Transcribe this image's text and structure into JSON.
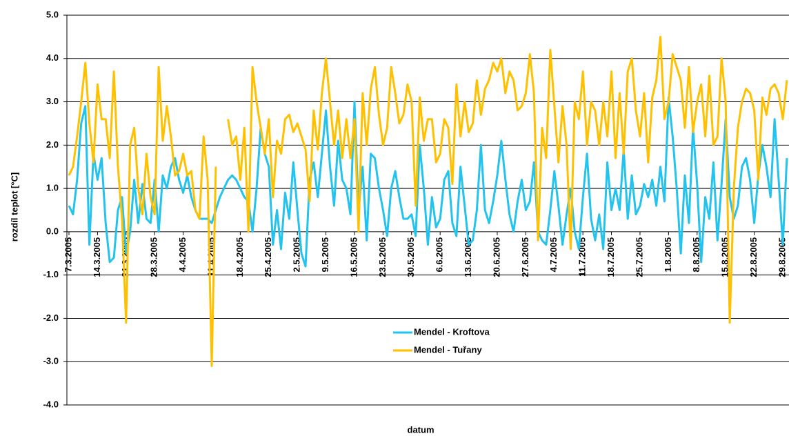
{
  "chart_data": {
    "type": "line",
    "y_label": "rozdíl teplot [°C]",
    "x_label": "datum",
    "categories": [
      "7.3.2005",
      null,
      null,
      null,
      null,
      null,
      null,
      "14.3.2005",
      null,
      null,
      null,
      null,
      null,
      null,
      "21.3.2005",
      null,
      null,
      null,
      null,
      null,
      null,
      "28.3.2005",
      null,
      null,
      null,
      null,
      null,
      null,
      "4.4.2005",
      null,
      null,
      null,
      null,
      null,
      null,
      "11.4.2005",
      null,
      null,
      null,
      null,
      null,
      null,
      "18.4.2005",
      null,
      null,
      null,
      null,
      null,
      null,
      "25.4.2005",
      null,
      null,
      null,
      null,
      null,
      null,
      "2.5.2005",
      null,
      null,
      null,
      null,
      null,
      null,
      "9.5.2005",
      null,
      null,
      null,
      null,
      null,
      null,
      "16.5.2005",
      null,
      null,
      null,
      null,
      null,
      null,
      "23.5.2005",
      null,
      null,
      null,
      null,
      null,
      null,
      "30.5.2005",
      null,
      null,
      null,
      null,
      null,
      null,
      "6.6.2005",
      null,
      null,
      null,
      null,
      null,
      null,
      "13.6.2005",
      null,
      null,
      null,
      null,
      null,
      null,
      "20.6.2005",
      null,
      null,
      null,
      null,
      null,
      null,
      "27.6.2005",
      null,
      null,
      null,
      null,
      null,
      null,
      "4.7.2005",
      null,
      null,
      null,
      null,
      null,
      null,
      "11.7.2005",
      null,
      null,
      null,
      null,
      null,
      null,
      "18.7.2005",
      null,
      null,
      null,
      null,
      null,
      null,
      "25.7.2005",
      null,
      null,
      null,
      null,
      null,
      null,
      "1.8.2005",
      null,
      null,
      null,
      null,
      null,
      null,
      "8.8.2005",
      null,
      null,
      null,
      null,
      null,
      null,
      "15.8.2005",
      null,
      null,
      null,
      null,
      null,
      null,
      "22.8.2005",
      null,
      null,
      null,
      null,
      null,
      null,
      "29.8.2005",
      null
    ],
    "series": [
      {
        "name": "Mendel - Kroftova",
        "color": "#22c3ee",
        "values": [
          0.6,
          0.4,
          1.2,
          2.5,
          2.9,
          -0.3,
          1.8,
          1.2,
          1.7,
          0.2,
          -0.7,
          -0.6,
          0.5,
          0.8,
          -0.5,
          0.0,
          1.2,
          0.2,
          1.1,
          0.3,
          0.2,
          1.2,
          0.0,
          1.3,
          1.0,
          1.5,
          1.7,
          1.2,
          0.9,
          1.3,
          0.8,
          0.5,
          0.3,
          0.3,
          0.3,
          0.2,
          0.5,
          0.8,
          1.0,
          1.2,
          1.3,
          1.2,
          1.0,
          0.8,
          0.7,
          0.0,
          1.0,
          2.4,
          1.8,
          1.5,
          -0.3,
          0.5,
          -0.4,
          0.9,
          0.3,
          1.6,
          0.5,
          -0.5,
          -0.8,
          1.2,
          1.6,
          0.8,
          1.8,
          2.8,
          1.5,
          0.6,
          2.1,
          1.2,
          1.0,
          0.4,
          3.0,
          0.5,
          1.5,
          -0.2,
          1.8,
          1.7,
          1.0,
          0.5,
          -0.1,
          1.0,
          1.4,
          0.8,
          0.3,
          0.3,
          0.4,
          -0.1,
          2.0,
          1.0,
          -0.3,
          0.8,
          0.1,
          0.3,
          1.2,
          1.4,
          0.2,
          -0.1,
          1.5,
          0.6,
          -0.3,
          -0.2,
          0.5,
          2.0,
          0.5,
          0.2,
          0.7,
          1.3,
          2.1,
          1.2,
          0.4,
          0.0,
          0.7,
          1.2,
          0.5,
          0.7,
          1.6,
          0.0,
          -0.2,
          -0.3,
          0.5,
          1.4,
          0.6,
          -0.3,
          0.4,
          1.0,
          0.0,
          -0.4,
          0.8,
          1.8,
          0.3,
          -0.2,
          0.4,
          -0.4,
          1.6,
          0.5,
          1.0,
          0.5,
          1.9,
          0.3,
          1.3,
          0.4,
          0.6,
          1.1,
          0.8,
          1.2,
          0.6,
          1.5,
          0.7,
          3.1,
          2.2,
          1.0,
          -0.5,
          1.3,
          0.2,
          2.4,
          1.1,
          -0.7,
          0.8,
          0.3,
          1.6,
          -0.2,
          1.1,
          2.6,
          0.8,
          0.3,
          0.6,
          1.5,
          1.7,
          1.2,
          0.2,
          1.3,
          2.0,
          1.5,
          0.8,
          2.6,
          1.2,
          -0.3,
          1.7
        ]
      },
      {
        "name": "Mendel - Tuřany",
        "color": "#ffc000",
        "values": [
          1.3,
          1.5,
          2.2,
          3.0,
          3.9,
          2.5,
          1.6,
          3.4,
          2.6,
          2.6,
          1.7,
          3.7,
          1.5,
          0.3,
          -2.1,
          2.0,
          2.4,
          1.0,
          0.4,
          1.8,
          0.8,
          0.4,
          3.8,
          2.1,
          2.9,
          2.2,
          1.3,
          1.4,
          1.8,
          1.3,
          1.4,
          0.5,
          0.3,
          2.2,
          1.2,
          -3.1,
          1.5,
          null,
          null,
          2.6,
          2.0,
          2.2,
          1.2,
          2.4,
          0.0,
          3.8,
          3.0,
          2.4,
          1.8,
          2.6,
          0.8,
          2.1,
          1.8,
          2.6,
          2.7,
          2.3,
          2.5,
          2.2,
          1.9,
          0.7,
          2.8,
          1.9,
          3.2,
          4.0,
          3.0,
          2.0,
          2.8,
          1.7,
          2.6,
          1.7,
          2.6,
          0.0,
          3.2,
          2.0,
          3.3,
          3.8,
          2.7,
          2.0,
          2.4,
          3.8,
          3.2,
          2.5,
          2.7,
          3.4,
          3.0,
          0.6,
          3.1,
          2.1,
          2.6,
          2.6,
          1.6,
          1.8,
          2.6,
          2.4,
          1.1,
          3.4,
          2.2,
          3.0,
          2.3,
          2.5,
          3.5,
          2.7,
          3.3,
          3.5,
          3.9,
          3.7,
          4.0,
          3.2,
          3.7,
          3.5,
          2.8,
          2.9,
          3.2,
          4.1,
          3.2,
          -0.2,
          2.4,
          1.7,
          4.2,
          2.9,
          1.6,
          2.9,
          2.0,
          -0.4,
          3.0,
          2.6,
          3.7,
          2.0,
          3.0,
          2.8,
          2.0,
          3.0,
          2.2,
          3.7,
          1.7,
          3.2,
          1.8,
          3.7,
          4.0,
          2.8,
          2.2,
          3.2,
          1.6,
          3.1,
          3.5,
          4.5,
          2.6,
          3.0,
          4.1,
          3.8,
          3.5,
          2.4,
          3.8,
          2.3,
          3.0,
          3.4,
          2.2,
          3.6,
          2.0,
          2.2,
          4.0,
          3.0,
          -2.1,
          1.0,
          2.4,
          3.0,
          3.3,
          3.2,
          2.8,
          1.2,
          3.1,
          2.7,
          3.3,
          3.4,
          3.2,
          2.6,
          3.5
        ]
      }
    ],
    "ylim": [
      -4,
      5
    ],
    "yticks": [
      {
        "value": -4,
        "label": "-4.0"
      },
      {
        "value": -3,
        "label": "-3.0"
      },
      {
        "value": -2,
        "label": "-2.0"
      },
      {
        "value": -1,
        "label": "-1.0"
      },
      {
        "value": 0,
        "label": "0.0"
      },
      {
        "value": 1,
        "label": "1.0"
      },
      {
        "value": 2,
        "label": "2.0"
      },
      {
        "value": 3,
        "label": "3.0"
      },
      {
        "value": 4,
        "label": "4.0"
      },
      {
        "value": 5,
        "label": "5.0"
      }
    ],
    "grid": true,
    "legend": "lower-center"
  }
}
